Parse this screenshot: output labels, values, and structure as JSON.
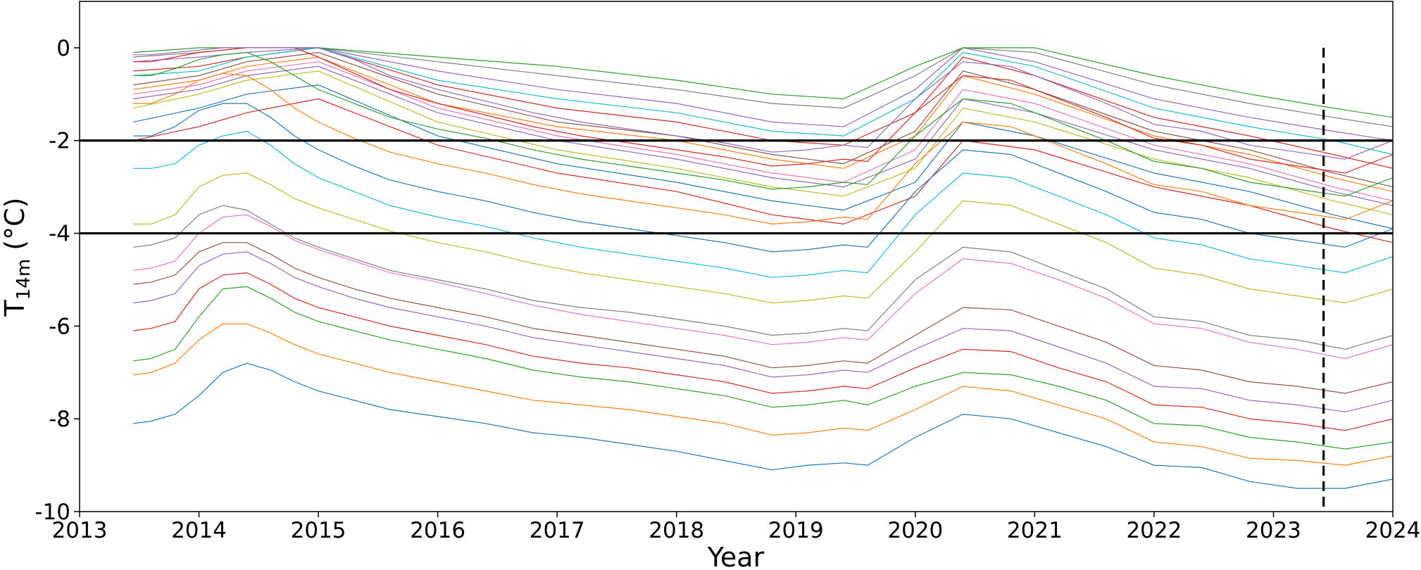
{
  "chart_data": {
    "type": "line",
    "title": "",
    "xlabel": "Year",
    "ylabel_main": "T",
    "ylabel_sub": "14m",
    "ylabel_unit": " (°C)",
    "xlim": [
      2013,
      2024
    ],
    "ylim": [
      -10,
      1
    ],
    "x_ticks": [
      2013,
      2014,
      2015,
      2016,
      2017,
      2018,
      2019,
      2020,
      2021,
      2022,
      2023,
      2024
    ],
    "x_tick_labels": [
      "2013",
      "2014",
      "2015",
      "2016",
      "2017",
      "2018",
      "2019",
      "2020",
      "2021",
      "2022",
      "2023",
      "2024"
    ],
    "y_ticks": [
      -10,
      -8,
      -6,
      -4,
      -2,
      0
    ],
    "y_tick_labels": [
      "-10",
      "-8",
      "-6",
      "-4",
      "-2",
      "0"
    ],
    "grid": false,
    "legend": "none",
    "reference_lines": [
      {
        "orientation": "horizontal",
        "y": -2,
        "style": "solid",
        "color": "#000000"
      },
      {
        "orientation": "horizontal",
        "y": -4,
        "style": "solid",
        "color": "#000000"
      },
      {
        "orientation": "vertical",
        "x": 2023.42,
        "style": "dashed",
        "color": "#000000"
      }
    ],
    "series_colors": [
      "#1f77b4",
      "#ff7f0e",
      "#2ca02c",
      "#d62728",
      "#9467bd",
      "#8c564b",
      "#e377c2",
      "#7f7f7f",
      "#bcbd22",
      "#17becf"
    ],
    "x_dense": [
      2013.45,
      2013.6,
      2013.8,
      2014.0,
      2014.2,
      2014.4,
      2014.6,
      2014.8,
      2015.0,
      2015.3,
      2015.6,
      2016.0,
      2016.4,
      2016.8,
      2017.2,
      2017.6,
      2018.0,
      2018.4,
      2018.8,
      2019.1,
      2019.4,
      2019.6,
      2020.0,
      2020.4,
      2020.8,
      2021.2,
      2021.6,
      2022.0,
      2022.4,
      2022.8,
      2023.2,
      2023.6,
      2024.0
    ],
    "series": [
      {
        "values": [
          -8.1,
          -8.05,
          -7.9,
          -7.5,
          -7.0,
          -6.8,
          -6.95,
          -7.2,
          -7.4,
          -7.6,
          -7.8,
          -7.95,
          -8.1,
          -8.3,
          -8.4,
          -8.55,
          -8.7,
          -8.9,
          -9.1,
          -9.0,
          -8.95,
          -9.0,
          -8.4,
          -7.9,
          -8.0,
          -8.3,
          -8.6,
          -9.0,
          -9.05,
          -9.35,
          -9.5,
          -9.5,
          -9.3
        ]
      },
      {
        "values": [
          -7.05,
          -7.0,
          -6.8,
          -6.3,
          -5.95,
          -5.95,
          -6.15,
          -6.4,
          -6.6,
          -6.8,
          -7.0,
          -7.2,
          -7.4,
          -7.6,
          -7.7,
          -7.8,
          -7.95,
          -8.1,
          -8.35,
          -8.3,
          -8.2,
          -8.25,
          -7.8,
          -7.3,
          -7.4,
          -7.7,
          -8.0,
          -8.5,
          -8.6,
          -8.85,
          -8.9,
          -9.0,
          -8.8
        ]
      },
      {
        "values": [
          -6.75,
          -6.7,
          -6.5,
          -5.8,
          -5.2,
          -5.15,
          -5.4,
          -5.7,
          -5.9,
          -6.1,
          -6.3,
          -6.5,
          -6.7,
          -6.95,
          -7.1,
          -7.2,
          -7.35,
          -7.5,
          -7.75,
          -7.7,
          -7.6,
          -7.7,
          -7.3,
          -7.0,
          -7.05,
          -7.3,
          -7.6,
          -8.1,
          -8.15,
          -8.4,
          -8.5,
          -8.65,
          -8.5
        ]
      },
      {
        "values": [
          -6.1,
          -6.05,
          -5.9,
          -5.2,
          -4.9,
          -4.85,
          -5.1,
          -5.4,
          -5.6,
          -5.8,
          -6.0,
          -6.2,
          -6.4,
          -6.65,
          -6.8,
          -6.9,
          -7.05,
          -7.2,
          -7.45,
          -7.4,
          -7.3,
          -7.35,
          -6.9,
          -6.5,
          -6.55,
          -6.9,
          -7.2,
          -7.7,
          -7.75,
          -8.0,
          -8.1,
          -8.25,
          -8.0
        ]
      },
      {
        "values": [
          -5.5,
          -5.45,
          -5.3,
          -4.7,
          -4.45,
          -4.4,
          -4.65,
          -4.95,
          -5.15,
          -5.4,
          -5.6,
          -5.8,
          -6.0,
          -6.25,
          -6.4,
          -6.55,
          -6.7,
          -6.85,
          -7.1,
          -7.05,
          -6.95,
          -7.0,
          -6.5,
          -6.05,
          -6.1,
          -6.45,
          -6.8,
          -7.3,
          -7.35,
          -7.6,
          -7.7,
          -7.85,
          -7.6
        ]
      },
      {
        "values": [
          -5.1,
          -5.05,
          -4.9,
          -4.4,
          -4.2,
          -4.2,
          -4.45,
          -4.75,
          -4.95,
          -5.2,
          -5.4,
          -5.6,
          -5.8,
          -6.05,
          -6.2,
          -6.35,
          -6.5,
          -6.65,
          -6.9,
          -6.85,
          -6.75,
          -6.8,
          -6.2,
          -5.6,
          -5.65,
          -6.0,
          -6.35,
          -6.85,
          -6.95,
          -7.2,
          -7.3,
          -7.45,
          -7.2
        ]
      },
      {
        "values": [
          -4.8,
          -4.75,
          -4.6,
          -4.0,
          -3.65,
          -3.6,
          -3.85,
          -4.15,
          -4.35,
          -4.6,
          -4.85,
          -5.05,
          -5.3,
          -5.55,
          -5.75,
          -5.9,
          -6.05,
          -6.2,
          -6.4,
          -6.35,
          -6.25,
          -6.3,
          -5.3,
          -4.55,
          -4.65,
          -5.0,
          -5.4,
          -5.95,
          -6.05,
          -6.35,
          -6.5,
          -6.7,
          -6.4
        ]
      },
      {
        "values": [
          -4.3,
          -4.25,
          -4.1,
          -3.6,
          -3.4,
          -3.5,
          -3.8,
          -4.1,
          -4.3,
          -4.55,
          -4.8,
          -5.0,
          -5.2,
          -5.45,
          -5.6,
          -5.7,
          -5.85,
          -6.0,
          -6.2,
          -6.15,
          -6.05,
          -6.1,
          -5.0,
          -4.3,
          -4.4,
          -4.8,
          -5.2,
          -5.8,
          -5.9,
          -6.2,
          -6.3,
          -6.5,
          -6.2
        ]
      },
      {
        "values": [
          -3.8,
          -3.8,
          -3.6,
          -3.0,
          -2.75,
          -2.7,
          -2.95,
          -3.25,
          -3.45,
          -3.7,
          -3.95,
          -4.2,
          -4.4,
          -4.65,
          -4.85,
          -5.0,
          -5.15,
          -5.3,
          -5.5,
          -5.45,
          -5.35,
          -5.4,
          -4.4,
          -3.3,
          -3.4,
          -3.8,
          -4.2,
          -4.75,
          -4.9,
          -5.2,
          -5.35,
          -5.5,
          -5.2
        ]
      },
      {
        "values": [
          -2.6,
          -2.6,
          -2.5,
          -2.1,
          -1.9,
          -1.8,
          -2.1,
          -2.5,
          -2.8,
          -3.1,
          -3.4,
          -3.65,
          -3.85,
          -4.1,
          -4.3,
          -4.45,
          -4.6,
          -4.75,
          -4.95,
          -4.9,
          -4.8,
          -4.85,
          -3.6,
          -2.7,
          -2.8,
          -3.2,
          -3.6,
          -4.1,
          -4.25,
          -4.55,
          -4.7,
          -4.85,
          -4.5
        ]
      },
      {
        "values": [
          -1.9,
          -1.9,
          -1.7,
          -1.35,
          -1.2,
          -1.2,
          -1.5,
          -1.9,
          -2.2,
          -2.55,
          -2.85,
          -3.1,
          -3.3,
          -3.55,
          -3.75,
          -3.9,
          -4.05,
          -4.2,
          -4.4,
          -4.35,
          -4.25,
          -4.3,
          -3.1,
          -2.2,
          -2.3,
          -2.7,
          -3.1,
          -3.55,
          -3.7,
          -4.0,
          -4.15,
          -4.3,
          -3.9
        ]
      },
      {
        "values": [
          -1.2,
          -1.2,
          -1.0,
          -0.7,
          -0.55,
          -0.6,
          -0.9,
          -1.3,
          -1.6,
          -1.95,
          -2.25,
          -2.5,
          -2.7,
          -2.95,
          -3.15,
          -3.3,
          -3.45,
          -3.6,
          -3.8,
          -3.75,
          -3.65,
          -3.7,
          -2.5,
          -1.6,
          -1.7,
          -2.1,
          -2.5,
          -2.95,
          -3.1,
          -3.4,
          -3.55,
          -3.7,
          -3.3
        ]
      },
      {
        "values": [
          -0.6,
          -0.6,
          -0.45,
          -0.25,
          -0.15,
          -0.1,
          -0.3,
          -0.6,
          -0.9,
          -1.2,
          -1.5,
          -1.75,
          -1.95,
          -2.2,
          -2.4,
          -2.55,
          -2.7,
          -2.85,
          -3.05,
          -3.0,
          -2.9,
          -2.95,
          -1.9,
          -1.1,
          -1.2,
          -1.6,
          -2.0,
          -2.45,
          -2.6,
          -2.9,
          -3.05,
          -3.2,
          -2.8
        ]
      },
      {
        "values": [
          -0.3,
          -0.3,
          -0.2,
          -0.1,
          -0.05,
          0,
          0,
          0,
          -0.2,
          -0.55,
          -0.9,
          -1.2,
          -1.45,
          -1.7,
          -1.9,
          -2.05,
          -2.2,
          -2.35,
          -2.55,
          -2.5,
          -2.4,
          -2.45,
          -1.4,
          -0.6,
          -0.7,
          -1.1,
          -1.5,
          -1.95,
          -2.1,
          -2.4,
          -2.55,
          -2.7,
          -2.3
        ]
      },
      {
        "values": [
          -0.15,
          -0.15,
          -0.1,
          -0.05,
          0,
          0,
          0,
          0,
          0,
          -0.25,
          -0.6,
          -0.9,
          -1.15,
          -1.4,
          -1.6,
          -1.75,
          -1.9,
          -2.05,
          -2.25,
          -2.2,
          -2.1,
          -2.15,
          -1.1,
          -0.3,
          -0.4,
          -0.8,
          -1.2,
          -1.65,
          -1.8,
          -2.1,
          -2.25,
          -2.4,
          -2.0
        ]
      }
    ],
    "x_sparse": [
      2013.45,
      2014.0,
      2014.4,
      2015.0,
      2016.0,
      2017.0,
      2018.0,
      2018.8,
      2019.4,
      2020.0,
      2020.4,
      2021.0,
      2022.0,
      2022.8,
      2023.5,
      2024.0
    ],
    "series_band": [
      {
        "values": [
          -0.5,
          -0.4,
          -0.2,
          0,
          -0.8,
          -1.3,
          -1.6,
          -2.0,
          -2.1,
          -1.4,
          -0.2,
          -0.6,
          -1.5,
          -1.9,
          -2.3,
          -2.6
        ]
      },
      {
        "values": [
          -0.3,
          -0.2,
          -0.1,
          0,
          -0.5,
          -0.9,
          -1.2,
          -1.6,
          -1.7,
          -0.9,
          0,
          -0.3,
          -1.1,
          -1.5,
          -1.8,
          -2.0
        ]
      },
      {
        "values": [
          -0.8,
          -0.6,
          -0.3,
          -0.1,
          -1.0,
          -1.6,
          -1.9,
          -2.3,
          -2.5,
          -1.8,
          -0.5,
          -0.9,
          -1.8,
          -2.2,
          -2.7,
          -3.0
        ]
      },
      {
        "values": [
          -1.0,
          -0.8,
          -0.5,
          -0.3,
          -1.3,
          -1.9,
          -2.3,
          -2.7,
          -2.9,
          -2.2,
          -0.9,
          -1.2,
          -2.1,
          -2.5,
          -3.0,
          -3.3
        ]
      },
      {
        "values": [
          -0.2,
          -0.1,
          0,
          0,
          -0.3,
          -0.6,
          -0.9,
          -1.2,
          -1.3,
          -0.6,
          0,
          -0.1,
          -0.8,
          -1.2,
          -1.5,
          -1.7
        ]
      },
      {
        "values": [
          -1.3,
          -1.0,
          -0.7,
          -0.5,
          -1.6,
          -2.2,
          -2.6,
          -3.0,
          -3.2,
          -2.6,
          -1.3,
          -1.6,
          -2.4,
          -2.8,
          -3.3,
          -3.6
        ]
      },
      {
        "values": [
          -0.6,
          -0.5,
          -0.2,
          0,
          -0.7,
          -1.1,
          -1.4,
          -1.8,
          -1.9,
          -1.1,
          -0.1,
          -0.4,
          -1.3,
          -1.7,
          -2.0,
          -2.3
        ]
      },
      {
        "values": [
          -1.6,
          -1.3,
          -1.0,
          -0.8,
          -1.9,
          -2.5,
          -2.9,
          -3.3,
          -3.5,
          -2.9,
          -1.6,
          -1.9,
          -2.7,
          -3.1,
          -3.6,
          -3.9
        ]
      },
      {
        "values": [
          -0.9,
          -0.7,
          -0.4,
          -0.2,
          -1.2,
          -1.7,
          -2.0,
          -2.4,
          -2.6,
          -1.9,
          -0.6,
          -1.0,
          -1.9,
          -2.3,
          -2.8,
          -3.1
        ]
      },
      {
        "values": [
          -0.1,
          0,
          0,
          0,
          -0.2,
          -0.4,
          -0.7,
          -1.0,
          -1.1,
          -0.4,
          0,
          0,
          -0.6,
          -1.0,
          -1.3,
          -1.5
        ]
      },
      {
        "values": [
          -2.0,
          -1.7,
          -1.4,
          -1.1,
          -2.1,
          -2.7,
          -3.1,
          -3.6,
          -3.8,
          -3.2,
          -2.0,
          -2.2,
          -3.0,
          -3.4,
          -3.9,
          -4.2
        ]
      },
      {
        "values": [
          -1.1,
          -0.9,
          -0.6,
          -0.4,
          -1.4,
          -2.0,
          -2.4,
          -2.8,
          -3.0,
          -2.4,
          -1.1,
          -1.4,
          -2.2,
          -2.6,
          -3.1,
          -3.4
        ]
      }
    ]
  }
}
